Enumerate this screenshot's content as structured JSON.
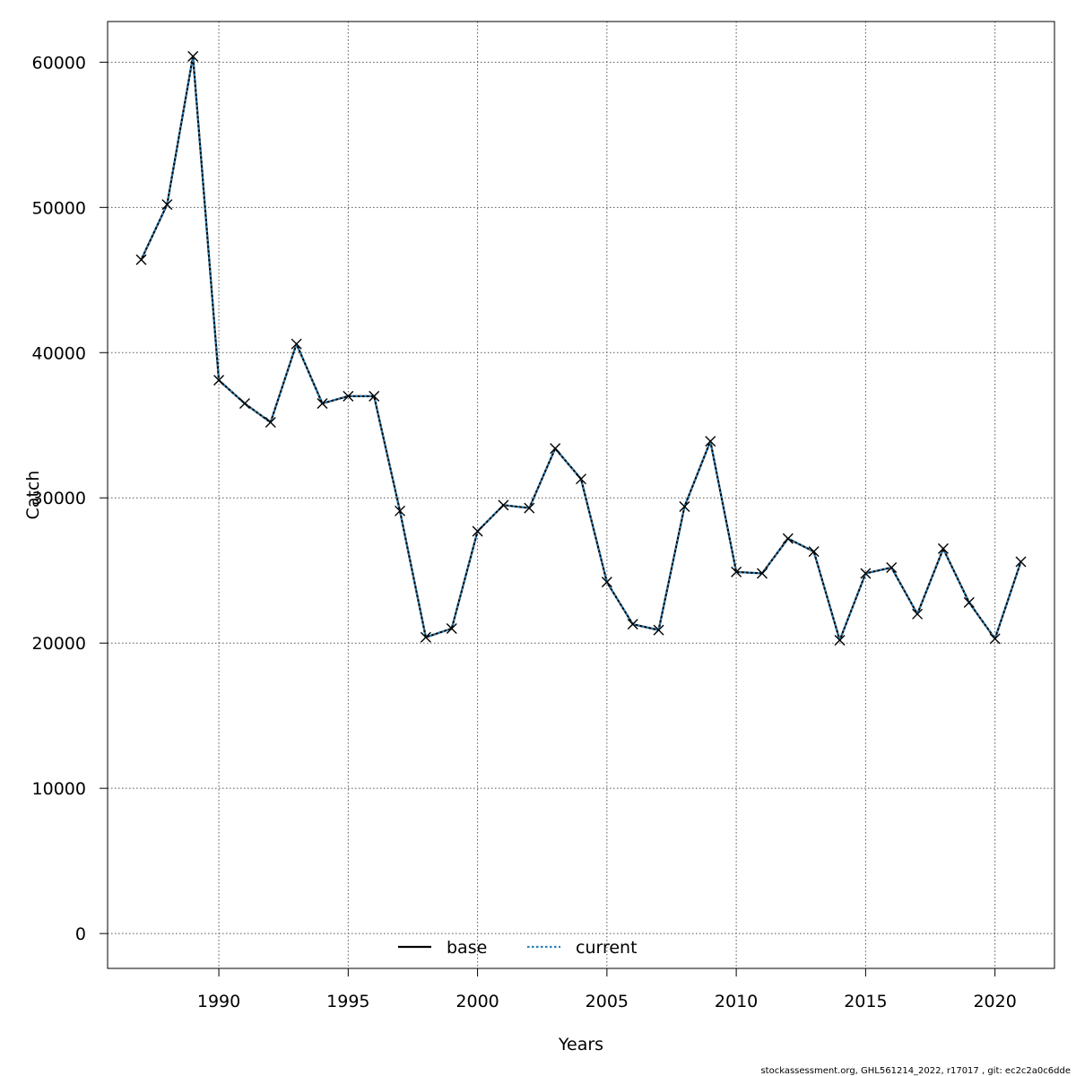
{
  "chart_data": {
    "type": "line",
    "xlabel": "Years",
    "ylabel": "Catch",
    "xlim": [
      1985.7,
      2022.3
    ],
    "ylim": [
      -2400,
      62800
    ],
    "x_ticks": [
      1990,
      1995,
      2000,
      2005,
      2010,
      2015,
      2020
    ],
    "y_ticks": [
      0,
      10000,
      20000,
      30000,
      40000,
      50000,
      60000
    ],
    "grid": true,
    "legend_position": "bottom-center",
    "x": [
      1987,
      1988,
      1989,
      1990,
      1991,
      1992,
      1993,
      1994,
      1995,
      1996,
      1997,
      1998,
      1999,
      2000,
      2001,
      2002,
      2003,
      2004,
      2005,
      2006,
      2007,
      2008,
      2009,
      2010,
      2011,
      2012,
      2013,
      2014,
      2015,
      2016,
      2017,
      2018,
      2019,
      2020,
      2021
    ],
    "series": [
      {
        "name": "base",
        "color": "#000000",
        "values": [
          46400,
          50200,
          60400,
          38100,
          36500,
          35200,
          40600,
          36500,
          37000,
          37000,
          29100,
          20400,
          21000,
          27700,
          29500,
          29300,
          33400,
          31300,
          24200,
          21300,
          20900,
          29400,
          33900,
          24900,
          24800,
          27200,
          26300,
          20200,
          24800,
          25200,
          22000,
          26500,
          22800,
          20300,
          25600
        ]
      },
      {
        "name": "current",
        "color": "#2a7fb8",
        "values": [
          46400,
          50200,
          60400,
          38100,
          36500,
          35200,
          40600,
          36500,
          37000,
          37000,
          29100,
          20400,
          21000,
          27700,
          29500,
          29300,
          33400,
          31300,
          24200,
          21300,
          20900,
          29400,
          33900,
          24900,
          24800,
          27200,
          26300,
          20200,
          24800,
          25200,
          22000,
          26500,
          22800,
          20300,
          25600
        ]
      }
    ],
    "observed_marker": "x"
  },
  "footer": "stockassessment.org, GHL561214_2022, r17017 , git: ec2c2a0c6dde"
}
